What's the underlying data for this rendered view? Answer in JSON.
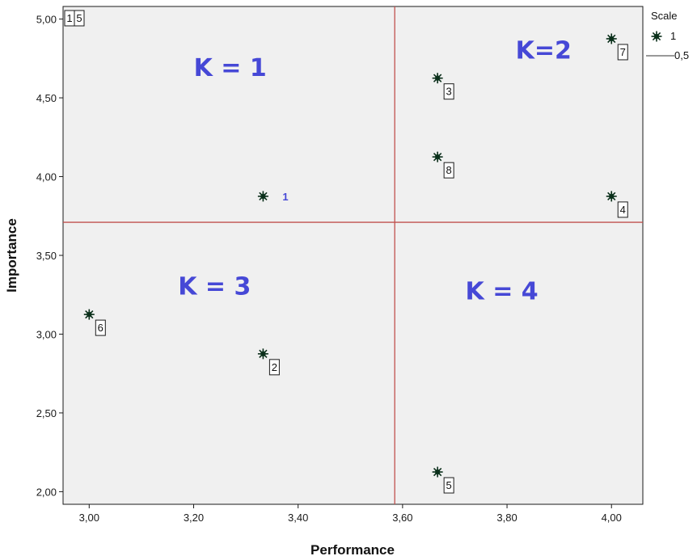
{
  "chart_data": {
    "type": "scatter",
    "xlabel": "Performance",
    "ylabel": "Importance",
    "xlim": [
      2.95,
      4.06
    ],
    "ylim": [
      1.92,
      5.08
    ],
    "x_ticks": [
      3.0,
      3.2,
      3.4,
      3.6,
      3.8,
      4.0
    ],
    "x_tick_labels": [
      "3,00",
      "3,20",
      "3,40",
      "3,60",
      "3,80",
      "4,00"
    ],
    "y_ticks": [
      2.0,
      2.5,
      3.0,
      3.5,
      4.0,
      4.5,
      5.0
    ],
    "y_tick_labels": [
      "2,00",
      "2,50",
      "3,00",
      "3,50",
      "4,00",
      "4,50",
      "5,00"
    ],
    "grid": false,
    "reference_lines": {
      "x": 3.585,
      "y": 3.71,
      "color": "#c0504d"
    },
    "points": [
      {
        "x": 3.333,
        "y": 3.875,
        "label": "1",
        "boxed": false
      },
      {
        "x": 3.333,
        "y": 2.875,
        "label": "2",
        "boxed": true
      },
      {
        "x": 3.667,
        "y": 4.625,
        "label": "3",
        "boxed": true
      },
      {
        "x": 4.0,
        "y": 3.875,
        "label": "4",
        "boxed": true
      },
      {
        "x": 3.667,
        "y": 2.125,
        "label": "5",
        "boxed": true
      },
      {
        "x": 3.0,
        "y": 3.125,
        "label": "6",
        "boxed": true
      },
      {
        "x": 4.0,
        "y": 4.875,
        "label": "7",
        "boxed": true
      },
      {
        "x": 3.667,
        "y": 4.125,
        "label": "8",
        "boxed": true
      }
    ],
    "corner_labels": [
      "1",
      "5"
    ],
    "quadrant_labels": [
      {
        "text": "K = 1",
        "x": 3.27,
        "y": 4.64
      },
      {
        "text": "K=2",
        "x": 3.87,
        "y": 4.75
      },
      {
        "text": "K = 3",
        "x": 3.24,
        "y": 3.25
      },
      {
        "text": "K = 4",
        "x": 3.79,
        "y": 3.22
      }
    ],
    "legend": {
      "title": "Scale",
      "entries": [
        "1",
        "0,5"
      ],
      "position": "top-right outside"
    },
    "colors": {
      "plot_background": "#f0f0f0",
      "marker_fill": "#1e5c3a",
      "marker_stroke": "#0b2e1a",
      "quadrant_label": "#4648d6",
      "point_label_unboxed": "#4648d6",
      "reference_line": "#c0504d"
    }
  }
}
